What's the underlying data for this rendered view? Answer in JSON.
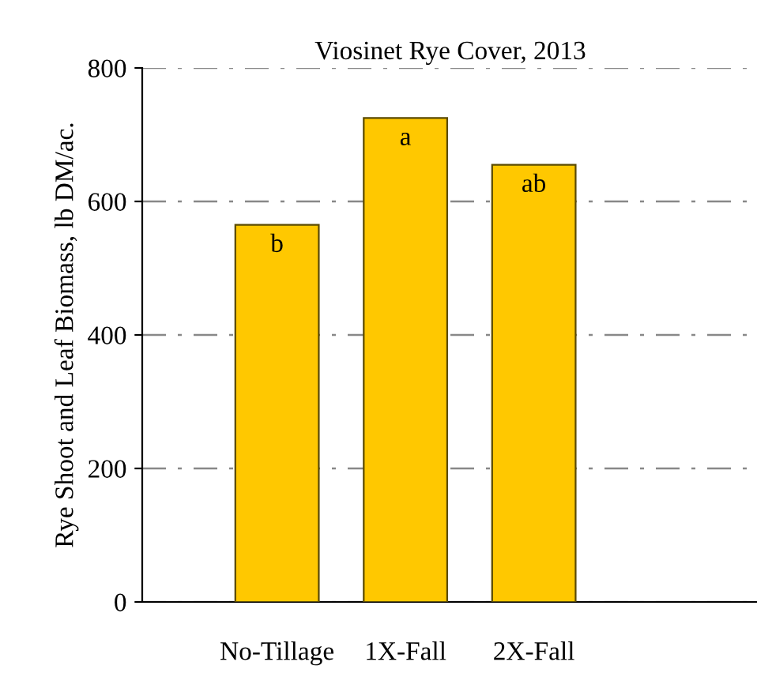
{
  "chart_data": {
    "type": "bar",
    "title": "Viosinet Rye Cover, 2013",
    "ylabel": "Rye Shoot and Leaf Biomass, lb DM/ac.",
    "categories": [
      "No-Tillage",
      "1X-Fall",
      "2X-Fall"
    ],
    "values": [
      565,
      725,
      655
    ],
    "color": "#ffc800",
    "ylim": [
      0,
      800
    ],
    "yticks": [
      0,
      200,
      400,
      600,
      800
    ],
    "grid": "y",
    "line_style": "dashdot",
    "annotations": [
      {
        "text": "b",
        "x": "No-Tillage",
        "y": 565
      },
      {
        "text": "a",
        "x": "1X-Fall",
        "y": 725
      },
      {
        "text": "ab",
        "x": "2X-Fall",
        "y": 655
      }
    ]
  }
}
